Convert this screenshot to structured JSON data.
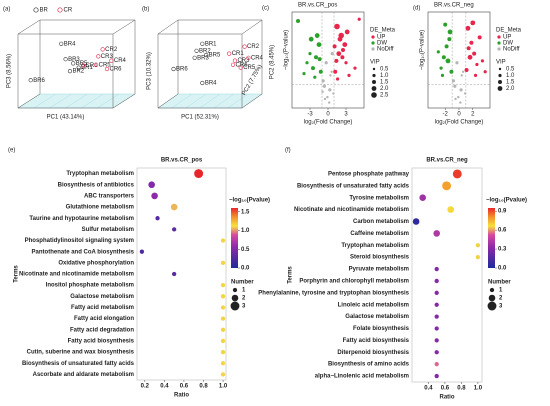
{
  "chart_data": [
    {
      "type": "pca",
      "panel": "(a)",
      "xlabel": "PC1 (43.14%)",
      "ylabel": "PC3 (8.56%)",
      "zlabel": "PC2 (8.45%)",
      "xlim": [
        0,
        1
      ],
      "ylim": [
        0,
        1
      ],
      "series": [
        {
          "name": "BR",
          "color": "#333333",
          "labels": [
            "BR4",
            "BR3",
            "BR5",
            "BR2",
            "BR1",
            "BR6"
          ],
          "x": [
            0.36,
            0.4,
            0.47,
            0.44,
            0.52,
            0.08
          ],
          "y": [
            0.86,
            0.64,
            0.58,
            0.47,
            0.52,
            0.34
          ]
        },
        {
          "name": "CR",
          "color": "#e8254a",
          "labels": [
            "CR1",
            "CR2",
            "CR3",
            "CR4",
            "CR5",
            "CR6"
          ],
          "x": [
            0.56,
            0.74,
            0.7,
            0.82,
            0.68,
            0.78
          ],
          "y": [
            0.55,
            0.78,
            0.68,
            0.62,
            0.56,
            0.5
          ]
        }
      ]
    },
    {
      "type": "pca",
      "panel": "(b)",
      "xlabel": "PC1 (52.31%)",
      "ylabel": "PC3 (10.32%)",
      "zlabel": "PC2 (7.75%)",
      "xlim": [
        0,
        1
      ],
      "ylim": [
        0,
        1
      ],
      "series": [
        {
          "name": "BR",
          "color": "#333333",
          "labels": [
            "BR1",
            "BR2",
            "BR3",
            "BR5",
            "BR4",
            "BR6"
          ],
          "x": [
            0.42,
            0.36,
            0.34,
            0.46,
            0.42,
            0.12
          ],
          "y": [
            0.86,
            0.76,
            0.66,
            0.7,
            0.3,
            0.5
          ]
        },
        {
          "name": "CR",
          "color": "#e8254a",
          "labels": [
            "CR1",
            "CR2",
            "CR3",
            "CR4",
            "CR5",
            "CR6"
          ],
          "x": [
            0.7,
            0.86,
            0.76,
            0.9,
            0.82,
            0.74
          ],
          "y": [
            0.72,
            0.82,
            0.62,
            0.66,
            0.52,
            0.56
          ]
        }
      ]
    },
    {
      "type": "volcano",
      "panel": "(c)",
      "title": "BR.vs.CR_pos",
      "xlabel": "log₂(Fold Change)",
      "ylabel": "−log₁₀(P-value)",
      "legend_title": "DE_Meta",
      "size_title": "VIP",
      "size_ticks": [
        0.5,
        {
          "value": 1,
          "label": "1.0"
        },
        1.5,
        {
          "value": 2,
          "label": "2.0"
        },
        2.5
      ],
      "xlim": [
        -6,
        6
      ],
      "ylim": [
        0,
        5.3
      ],
      "xticks": [
        -3,
        0,
        3
      ],
      "vlines": [
        -1,
        1
      ],
      "hline": 1.3,
      "series": [
        {
          "name": "UP",
          "color": "#e8254a",
          "x": [
            1.5,
            2,
            2.5,
            3,
            1.2,
            1.8,
            2.2,
            3.5,
            1.4,
            2.8,
            4.5,
            1.6,
            2.4,
            3.2,
            1.1,
            5.2
          ],
          "y": [
            4.5,
            3.8,
            3.2,
            2.5,
            2,
            3,
            4,
            1.8,
            2.6,
            3.5,
            2.2,
            1.6,
            2.8,
            4.2,
            3.4,
            4.9
          ],
          "size": [
            2.5,
            2,
            1.5,
            1,
            1.5,
            2,
            2.5,
            1,
            1.5,
            2,
            1,
            1,
            1.5,
            2,
            1.5,
            1
          ]
        },
        {
          "name": "DW",
          "color": "#2ca02c",
          "x": [
            -1.5,
            -2,
            -2.5,
            -3,
            -1.2,
            -1.8,
            -3.5,
            -2.2,
            -4,
            -1.4,
            -2.8,
            -5
          ],
          "y": [
            3.5,
            2.8,
            2.2,
            3,
            2,
            4,
            2.5,
            1.7,
            1.9,
            2.7,
            3.8,
            4.8
          ],
          "size": [
            2,
            1.5,
            1.5,
            1,
            1.5,
            2,
            1,
            1,
            1,
            1.5,
            2,
            1.5
          ]
        },
        {
          "name": "NoDiff",
          "color": "#b5b5b5",
          "x": [
            -0.5,
            0.3,
            0.6,
            -0.8,
            0.2,
            -0.3,
            0.9,
            -0.6,
            0.4,
            -0.1,
            0.7,
            -0.9
          ],
          "y": [
            0.5,
            1,
            2,
            1.5,
            0.3,
            2.5,
            0.8,
            1.2,
            1.8,
            0.6,
            3,
            0.9
          ],
          "size": [
            0.5,
            1,
            0.5,
            1,
            0.5,
            1,
            0.5,
            1,
            0.5,
            0.5,
            1,
            0.5
          ]
        }
      ]
    },
    {
      "type": "volcano",
      "panel": "(d)",
      "title": "BR.vs.CR_neg",
      "xlabel": "log₂(Fold Change)",
      "ylabel": "−log₁₀(P-value)",
      "legend_title": "DE_Meta",
      "size_title": "VIP",
      "size_ticks": [
        0.5,
        {
          "value": 1,
          "label": "1.0"
        },
        1.5,
        {
          "value": 2,
          "label": "2.0"
        }
      ],
      "xlim": [
        -4.5,
        4.5
      ],
      "ylim": [
        0,
        5.3
      ],
      "xticks": [
        -2,
        0,
        2
      ],
      "vlines": [
        -1,
        1
      ],
      "hline": 1.3,
      "series": [
        {
          "name": "UP",
          "color": "#e8254a",
          "x": [
            1.3,
            1.8,
            2.2,
            2.6,
            1.1,
            1.6,
            3,
            2.4,
            3.4,
            1.4,
            2,
            3.8
          ],
          "y": [
            4.4,
            3.6,
            3,
            2.4,
            2.1,
            2.8,
            3.9,
            1.8,
            2.6,
            3.3,
            4.7,
            2
          ],
          "size": [
            2,
            1.5,
            1.5,
            1,
            1.5,
            2,
            1.5,
            1,
            1,
            1.5,
            2,
            1
          ]
        },
        {
          "name": "DW",
          "color": "#2ca02c",
          "x": [
            -1.3,
            -1.8,
            -2.2,
            -2.6,
            -1.1,
            -1.6,
            -3,
            -2.4,
            -1.4,
            -2
          ],
          "y": [
            4.2,
            3.4,
            2.8,
            2.2,
            2,
            2.6,
            3.1,
            1.8,
            3.8,
            4.6
          ],
          "size": [
            2,
            1.5,
            1.5,
            1,
            1.5,
            2,
            1,
            1,
            1.5,
            1.5
          ]
        },
        {
          "name": "NoDiff",
          "color": "#b5b5b5",
          "x": [
            -0.5,
            0.3,
            0.6,
            -0.8,
            0.2,
            -0.3,
            0.9,
            -0.6,
            0.4,
            -0.1
          ],
          "y": [
            0.5,
            1,
            2,
            1.5,
            0.3,
            2.5,
            0.8,
            1.2,
            1.8,
            0.6
          ],
          "size": [
            0.5,
            1,
            0.5,
            1,
            0.5,
            1,
            0.5,
            1,
            0.5,
            0.5
          ]
        }
      ]
    },
    {
      "type": "bubble",
      "panel": "(e)",
      "title": "BR.vs.CR_pos",
      "xlabel": "Ratio",
      "ylabel": "Terms",
      "color_title": "−log₁₀(Pvalue)",
      "size_title": "Number",
      "categories": [
        "Tryptophan metabolism",
        "Biosynthesis of antibiotics",
        "ABC transporters",
        "Glutathione metabolism",
        "Taurine and hypotaurine metabolism",
        "Sulfur metabolism",
        "Phosphatidylinositol signaling system",
        "Pantothenate and CoA biosynthesis",
        "Oxidative phosphorylation",
        "Nicotinate and nicotinamide metabolism",
        "Inositol phosphate metabolism",
        "Galactose metabolism",
        "Fatty acid metabolism",
        "Fatty acid elongation",
        "Fatty acid degradation",
        "Fatty acid biosynthesis",
        "Cutin, suberine and wax biosynthesis",
        "Biosynthesis of unsaturated fatty acids",
        "Ascorbate and aldarate metabolism"
      ],
      "ratio": [
        0.75,
        0.27,
        0.3,
        0.5,
        0.33,
        0.5,
        1,
        0.17,
        1,
        0.5,
        1,
        1,
        1,
        1,
        1,
        1,
        1,
        1,
        1
      ],
      "pvalue": [
        1.6,
        0.5,
        0.55,
        1.05,
        0.3,
        0.3,
        1.1,
        0.25,
        1.1,
        0.3,
        1.1,
        1.1,
        1.1,
        1.1,
        1.1,
        1.1,
        1.1,
        1.1,
        1.1
      ],
      "number": [
        3,
        2,
        2,
        2,
        1,
        1,
        1,
        1,
        1,
        1,
        1,
        1,
        1,
        1,
        1,
        1,
        1,
        1,
        1
      ],
      "xlim": [
        0.12,
        1.03
      ],
      "xticks": [
        0.2,
        0.4,
        0.6,
        0.8,
        {
          "value": 1,
          "label": "1.0"
        }
      ],
      "clim": [
        0,
        1.6
      ],
      "cticks": [
        {
          "value": 0,
          "label": "0.0"
        },
        0.5,
        {
          "value": 1,
          "label": "1.0"
        },
        1.5
      ],
      "size_ticks": [
        1,
        2,
        3
      ]
    },
    {
      "type": "bubble",
      "panel": "(f)",
      "title": "BR.vs.CR_neg",
      "xlabel": "Ratio",
      "ylabel": "Terms",
      "color_title": "−log₁₀(Pvalue)",
      "size_title": "Number",
      "categories": [
        "Pentose phosphate pathway",
        "Biosynthesis of unsaturated fatty acids",
        "Tyrosine metabolism",
        "Nicotinate and nicotinamide metabolism",
        "Carbon metabolism",
        "Caffeine metabolism",
        "Tryptophan metabolism",
        "Steroid biosynthesis",
        "Pyruvate metabolism",
        "Porphyrin and chlorophyll metabolism",
        "Phenylalanine, tyrosine and tryptophan biosynthesis",
        "Linoleic acid metabolism",
        "Galactose metabolism",
        "Folate biosynthesis",
        "Fatty acid biosynthesis",
        "Diterpenoid biosynthesis",
        "Biosynthesis of amino acids",
        "alpha−Linolenic acid metabolism"
      ],
      "ratio": [
        0.75,
        0.62,
        0.33,
        0.67,
        0.25,
        0.5,
        1,
        1,
        0.5,
        0.5,
        0.5,
        0.5,
        0.5,
        0.5,
        0.5,
        0.5,
        0.5,
        0.5
      ],
      "pvalue": [
        0.92,
        0.78,
        0.38,
        0.68,
        0.05,
        0.42,
        0.65,
        0.65,
        0.3,
        0.3,
        0.3,
        0.3,
        0.3,
        0.3,
        0.3,
        0.3,
        0.55,
        0.3
      ],
      "number": [
        3,
        3,
        2,
        2,
        2,
        2,
        1,
        1,
        1,
        1,
        1,
        1,
        1,
        1,
        1,
        1,
        1,
        1
      ],
      "xlim": [
        0.2,
        1.05
      ],
      "xticks": [
        0.4,
        0.6,
        0.8,
        {
          "value": 1,
          "label": "1.0"
        }
      ],
      "clim": [
        0,
        0.95
      ],
      "cticks": [
        {
          "value": 0,
          "label": "0.0"
        },
        0.3,
        0.6,
        0.9
      ],
      "size_ticks": [
        1,
        2,
        3
      ]
    }
  ]
}
